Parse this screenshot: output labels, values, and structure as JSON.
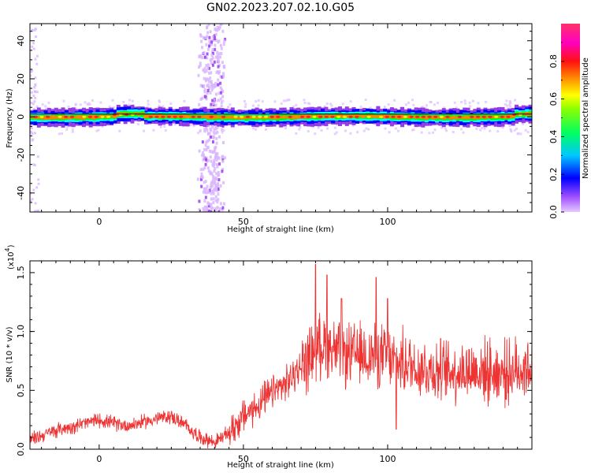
{
  "figure": {
    "title": "GN02.2023.207.02.10.G05"
  },
  "chart_data": [
    {
      "type": "heatmap",
      "xlabel": "Height of straight line (km)",
      "ylabel": "Frequency (Hz)",
      "xlim": [
        -24,
        150
      ],
      "ylim": [
        -50,
        49
      ],
      "x_ticks": [
        0,
        50,
        100
      ],
      "y_ticks": [
        40,
        20,
        0,
        -20,
        -40
      ],
      "grid": false,
      "colorbar": {
        "label": "Normalized spectral amplitude",
        "range": [
          0.0,
          1.0
        ],
        "ticks": [
          {
            "value": 0.0,
            "label": "0.0"
          },
          {
            "value": 0.2,
            "label": "0.2"
          },
          {
            "value": 0.4,
            "label": "0.4"
          },
          {
            "value": 0.6,
            "label": "0.6"
          },
          {
            "value": 0.8,
            "label": "0.8"
          }
        ],
        "colormap": [
          "#e5c9ff",
          "#8a2be2",
          "#0000ff",
          "#00ffff",
          "#00ff00",
          "#ffff00",
          "#ff8000",
          "#ff0000",
          "#ff00ff",
          "#ff3366"
        ]
      },
      "features": [
        {
          "name": "",
          "description_values": {
            "freq_center_hz": 0,
            "half_width_hz": 3,
            "x_range_km": [
              -24,
              150
            ],
            "peak_amplitude": 1.0
          }
        },
        {
          "name": "",
          "description_values": {
            "x_center_km": 39,
            "freq_range_hz": [
              -50,
              49
            ],
            "amplitude": 0.2
          }
        }
      ]
    },
    {
      "type": "line",
      "xlabel": "Height of straight line (km)",
      "ylabel": "SNR (10 * v/v)",
      "y_multiplier": "(x10",
      "y_multiplier_exp": "4",
      "y_multiplier_close": ")",
      "xlim": [
        -24,
        150
      ],
      "ylim": [
        0.0,
        1.6
      ],
      "x_ticks": [
        0,
        50,
        100
      ],
      "y_ticks": [
        {
          "value": 0.0,
          "label": "0.0"
        },
        {
          "value": 0.5,
          "label": "0.5"
        },
        {
          "value": 1.0,
          "label": "1.0"
        },
        {
          "value": 1.5,
          "label": "1.5"
        }
      ],
      "grid": false,
      "color": "#ee3333",
      "anchors": [
        [
          -24,
          0.08
        ],
        [
          -15,
          0.16
        ],
        [
          -5,
          0.22
        ],
        [
          0,
          0.25
        ],
        [
          5,
          0.22
        ],
        [
          10,
          0.2
        ],
        [
          20,
          0.26
        ],
        [
          25,
          0.28
        ],
        [
          30,
          0.2
        ],
        [
          35,
          0.1
        ],
        [
          40,
          0.06
        ],
        [
          45,
          0.14
        ],
        [
          50,
          0.28
        ],
        [
          55,
          0.37
        ],
        [
          60,
          0.48
        ],
        [
          65,
          0.56
        ],
        [
          70,
          0.7
        ],
        [
          75,
          0.85
        ],
        [
          78,
          0.9
        ],
        [
          82,
          0.84
        ],
        [
          85,
          0.8
        ],
        [
          90,
          0.8
        ],
        [
          95,
          0.8
        ],
        [
          100,
          0.78
        ],
        [
          103,
          0.72
        ],
        [
          105,
          0.74
        ],
        [
          110,
          0.7
        ],
        [
          120,
          0.66
        ],
        [
          130,
          0.67
        ],
        [
          140,
          0.65
        ],
        [
          150,
          0.7
        ]
      ],
      "spikes": [
        [
          75,
          1.57
        ],
        [
          79,
          1.48
        ],
        [
          84,
          1.28
        ],
        [
          96,
          1.46
        ],
        [
          100,
          1.28
        ],
        [
          103,
          0.17
        ]
      ]
    }
  ]
}
